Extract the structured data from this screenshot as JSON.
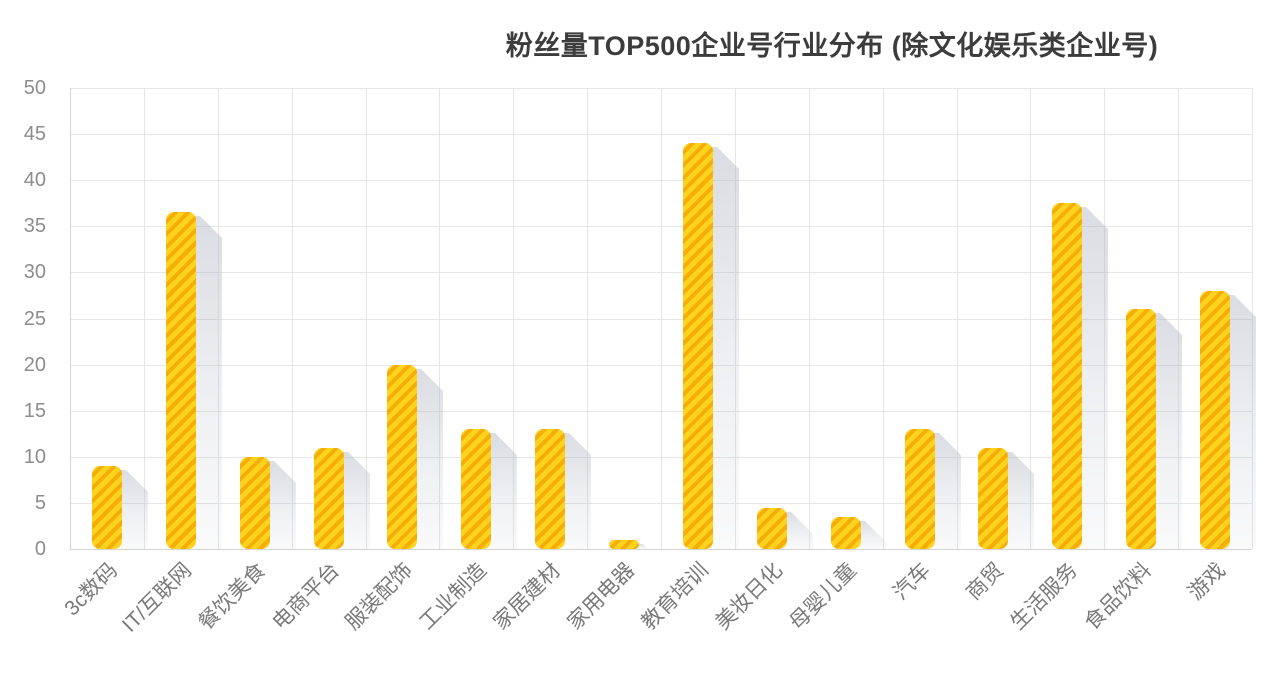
{
  "chart_data": {
    "type": "bar",
    "title": "粉丝量TOP500企业号行业分布 (除文化娱乐类企业号)",
    "categories": [
      "3c数码",
      "IT/互联网",
      "餐饮美食",
      "电商平台",
      "服装配饰",
      "工业制造",
      "家居建材",
      "家用电器",
      "教育培训",
      "美妆日化",
      "母婴儿童",
      "汽车",
      "商贸",
      "生活服务",
      "食品饮料",
      "游戏"
    ],
    "values": [
      9,
      36.5,
      10,
      11,
      20,
      13,
      13,
      1,
      44,
      4.5,
      3.5,
      13,
      11,
      37.5,
      26,
      28
    ],
    "xlabel": "",
    "ylabel": "",
    "ylim": [
      0,
      50
    ],
    "y_ticks": [
      0,
      5,
      10,
      15,
      20,
      25,
      30,
      35,
      40,
      45,
      50
    ],
    "grid": "on",
    "legend": "none",
    "bar_style": "diagonal-striped with long drop shadow, rounded corners",
    "colors": {
      "bar_fill": "#FFD21E",
      "bar_stripe": "#F3AE08",
      "bar_shadow": "#A9AFBC",
      "gridline": "#E6E6E6",
      "axis_line": "#D5D5D5",
      "y_tick_label": "#8D8D8D",
      "x_axis_label": "#7A7A7A",
      "title": "#3C3C3C",
      "background": "#FFFFFF"
    }
  }
}
